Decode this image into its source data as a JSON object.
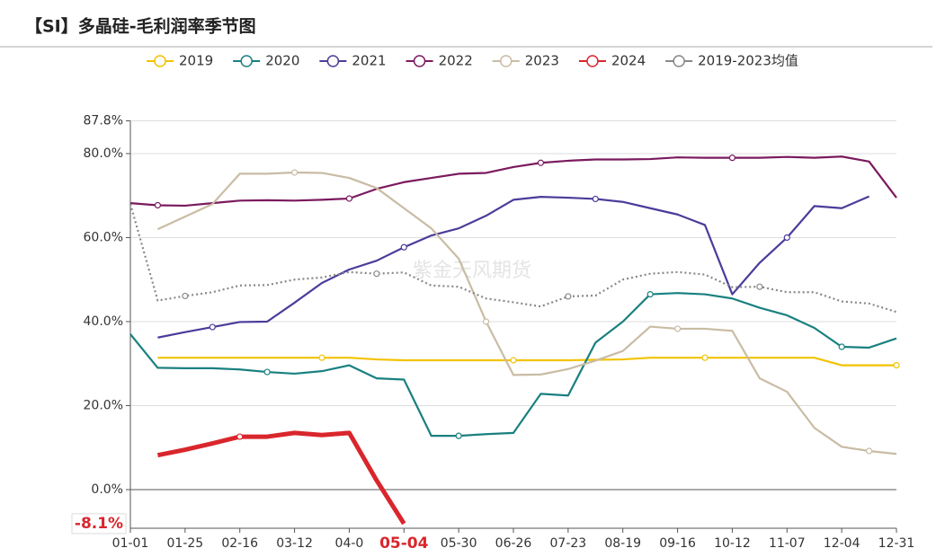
{
  "chart_data": {
    "type": "line",
    "title": "【SI】多晶硅-毛利润率季节图",
    "watermark": "紫金天风期货",
    "xticks": [
      "01-01",
      "01-25",
      "02-16",
      "03-12",
      "04-0",
      "05-04",
      "05-30",
      "06-26",
      "07-23",
      "08-19",
      "09-16",
      "10-12",
      "11-07",
      "12-04",
      "12-31"
    ],
    "ylim": [
      -9.2,
      87.8
    ],
    "yticks": [
      {
        "value": 0,
        "label": "0.0%"
      },
      {
        "value": 20,
        "label": "20.0%"
      },
      {
        "value": 40,
        "label": "40.0%"
      },
      {
        "value": 60,
        "label": "60.0%"
      },
      {
        "value": 80,
        "label": "80.0%"
      },
      {
        "value": 87.8,
        "label": "87.8%"
      }
    ],
    "grid": true,
    "highlight": {
      "xtick": 5,
      "value": -8.1,
      "label": "-8.1%",
      "color": "#d9262c"
    },
    "series": [
      {
        "name": "2019",
        "color": "#f2c200",
        "values": [
          null,
          31.4,
          31.4,
          31.4,
          31.4,
          31.4,
          31.4,
          31.4,
          31.4,
          31.0,
          30.8,
          30.8,
          30.8,
          30.8,
          30.8,
          30.8,
          30.8,
          30.9,
          31.0,
          31.4,
          31.4,
          31.4,
          31.4,
          31.4,
          31.4,
          31.4,
          29.6,
          29.6,
          29.6
        ]
      },
      {
        "name": "2020",
        "color": "#1a8080",
        "values": [
          37,
          29,
          28.9,
          28.9,
          28.6,
          28.0,
          27.6,
          28.2,
          29.6,
          26.5,
          26.2,
          12.8,
          12.8,
          13.2,
          13.5,
          22.8,
          22.4,
          35,
          40,
          46.5,
          46.8,
          46.5,
          45.5,
          43.3,
          41.5,
          38.5,
          34,
          33.8,
          36
        ]
      },
      {
        "name": "2021",
        "color": "#4b3c9a",
        "values": [
          null,
          36.2,
          37.5,
          38.7,
          39.9,
          40.0,
          44.5,
          49.2,
          52.4,
          54.5,
          57.7,
          60.5,
          62.2,
          65.2,
          69.0,
          69.7,
          69.5,
          69.2,
          68.5,
          67,
          65.5,
          63,
          46.5,
          54,
          60,
          67.5,
          67,
          69.8,
          null
        ]
      },
      {
        "name": "2022",
        "color": "#7b1a5e",
        "values": [
          68.2,
          67.7,
          67.6,
          68.2,
          68.8,
          68.9,
          68.8,
          69.0,
          69.3,
          71.6,
          73.2,
          74.2,
          75.2,
          75.4,
          76.8,
          77.8,
          78.3,
          78.6,
          78.6,
          78.7,
          79.1,
          79,
          79,
          79,
          79.2,
          79,
          79.3,
          78.1,
          69.5
        ]
      },
      {
        "name": "2023",
        "color": "#c9bca4",
        "values": [
          null,
          62,
          65,
          68,
          75.2,
          75.2,
          75.5,
          75.4,
          74.2,
          71.8,
          67,
          62.2,
          55,
          40,
          27.3,
          27.4,
          28.7,
          30.7,
          33,
          38.8,
          38.3,
          38.3,
          37.8,
          26.5,
          23.3,
          14.7,
          10.2,
          9.2,
          8.5
        ]
      },
      {
        "name": "2024",
        "color": "#d9262c",
        "values": [
          null,
          8.2,
          9.5,
          11.0,
          12.6,
          12.6,
          13.5,
          13.0,
          13.5,
          2.2,
          -8.1,
          null,
          null,
          null,
          null,
          null,
          null,
          null,
          null,
          null,
          null,
          null,
          null,
          null,
          null,
          null,
          null,
          null,
          null
        ]
      },
      {
        "name": "2019-2023均值",
        "color": "#888888",
        "dotted": true,
        "values": [
          68,
          45,
          46.1,
          47,
          48.6,
          48.7,
          50,
          50.5,
          51.8,
          51.4,
          51.7,
          48.6,
          48.3,
          45.5,
          44.6,
          43.6,
          46,
          46.2,
          50,
          51.4,
          51.8,
          51.2,
          48.2,
          48.3,
          47,
          47,
          44.8,
          44.3,
          42.3
        ]
      }
    ]
  }
}
